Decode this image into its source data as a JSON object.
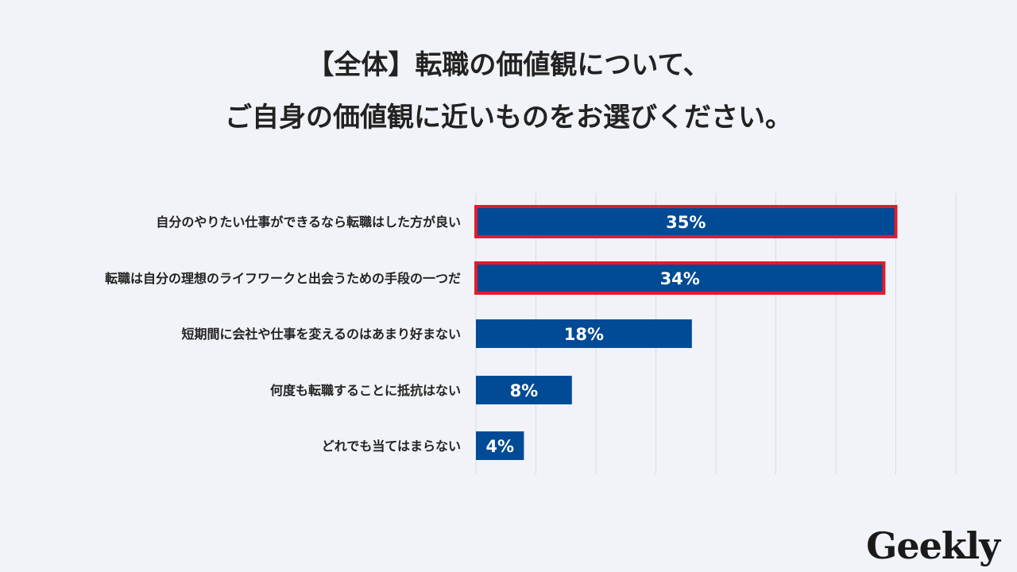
{
  "title_lines": [
    "【全体】転職の価値観について、",
    "ご自身の価値観に近いものをお選びください。"
  ],
  "chart_data": {
    "type": "bar",
    "orientation": "horizontal",
    "categories": [
      "自分のやりたい仕事ができるなら転職はした方が良い",
      "転職は自分の理想のライフワークと出会うための手段の一つだ",
      "短期間に会社や仕事を変えるのはあまり好まない",
      "何度も転職することに抵抗はない",
      "どれでも当てはまらない"
    ],
    "values": [
      35,
      34,
      18,
      8,
      4
    ],
    "value_labels": [
      "35%",
      "34%",
      "18%",
      "8%",
      "4%"
    ],
    "highlighted": [
      true,
      true,
      false,
      false,
      false
    ],
    "xlim": [
      0,
      40
    ],
    "grid": true,
    "legend": "none"
  },
  "colors": {
    "bar": "#004a96",
    "highlight_border": "#e21b2c",
    "grid": "#d9dbe2",
    "background": "#f1f3f8"
  },
  "logo": {
    "text": "Geekly"
  }
}
